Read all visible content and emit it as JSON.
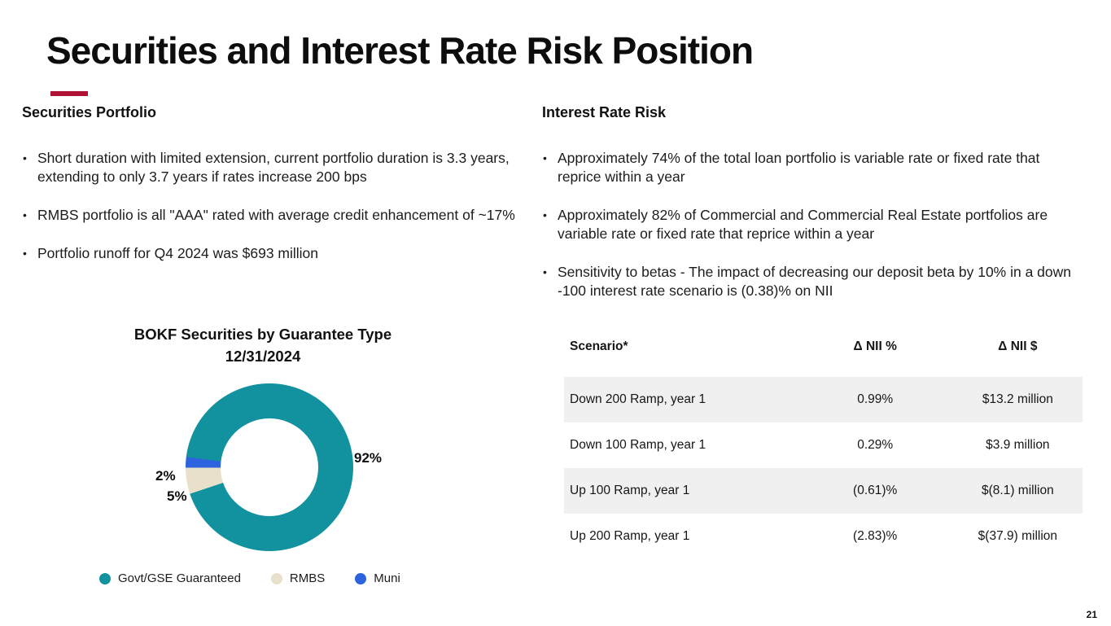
{
  "slide": {
    "title": "Securities and Interest Rate Risk Position",
    "page_number": "21"
  },
  "colors": {
    "accent_red": "#B01235",
    "stripe_gray": "#F0F0F0",
    "teal": "#12929E",
    "beige": "#E8E0CB",
    "blue": "#2D63DF"
  },
  "securities_portfolio": {
    "heading": "Securities Portfolio",
    "bullets": [
      "Short duration with limited extension, current portfolio duration is 3.3 years, extending to only 3.7 years if rates increase 200 bps",
      "RMBS portfolio is all \"AAA\" rated with average credit enhancement of ~17%",
      "Portfolio runoff for Q4 2024 was $693 million"
    ]
  },
  "interest_rate_risk": {
    "heading": "Interest Rate Risk",
    "bullets": [
      "Approximately 74% of the total loan portfolio is variable rate or fixed rate that reprice within a year",
      "Approximately 82% of Commercial and Commercial Real Estate portfolios are variable rate or fixed rate that reprice within a year",
      "Sensitivity to betas - The impact of decreasing our deposit beta by 10% in a down -100 interest rate scenario is (0.38)% on NII"
    ]
  },
  "chart_data": {
    "type": "pie",
    "donut": true,
    "title": "BOKF Securities by Guarantee Type",
    "subtitle": "12/31/2024",
    "categories": [
      "Govt/GSE Guaranteed",
      "RMBS",
      "Muni"
    ],
    "values": [
      92,
      5,
      2
    ],
    "labels": [
      "92%",
      "5%",
      "2%"
    ],
    "colors": [
      "#12929E",
      "#E8E0CB",
      "#2D63DF"
    ],
    "start_angle_deg": 277,
    "legend_position": "bottom"
  },
  "nii_table": {
    "headers": [
      "Scenario*",
      "Δ NII %",
      "Δ NII $"
    ],
    "rows": [
      [
        "Down 200 Ramp, year 1",
        "0.99%",
        "$13.2 million"
      ],
      [
        "Down 100 Ramp, year 1",
        "0.29%",
        "$3.9 million"
      ],
      [
        "Up 100 Ramp, year 1",
        "(0.61)%",
        "$(8.1) million"
      ],
      [
        "Up 200 Ramp, year 1",
        "(2.83)%",
        "$(37.9) million"
      ]
    ]
  }
}
